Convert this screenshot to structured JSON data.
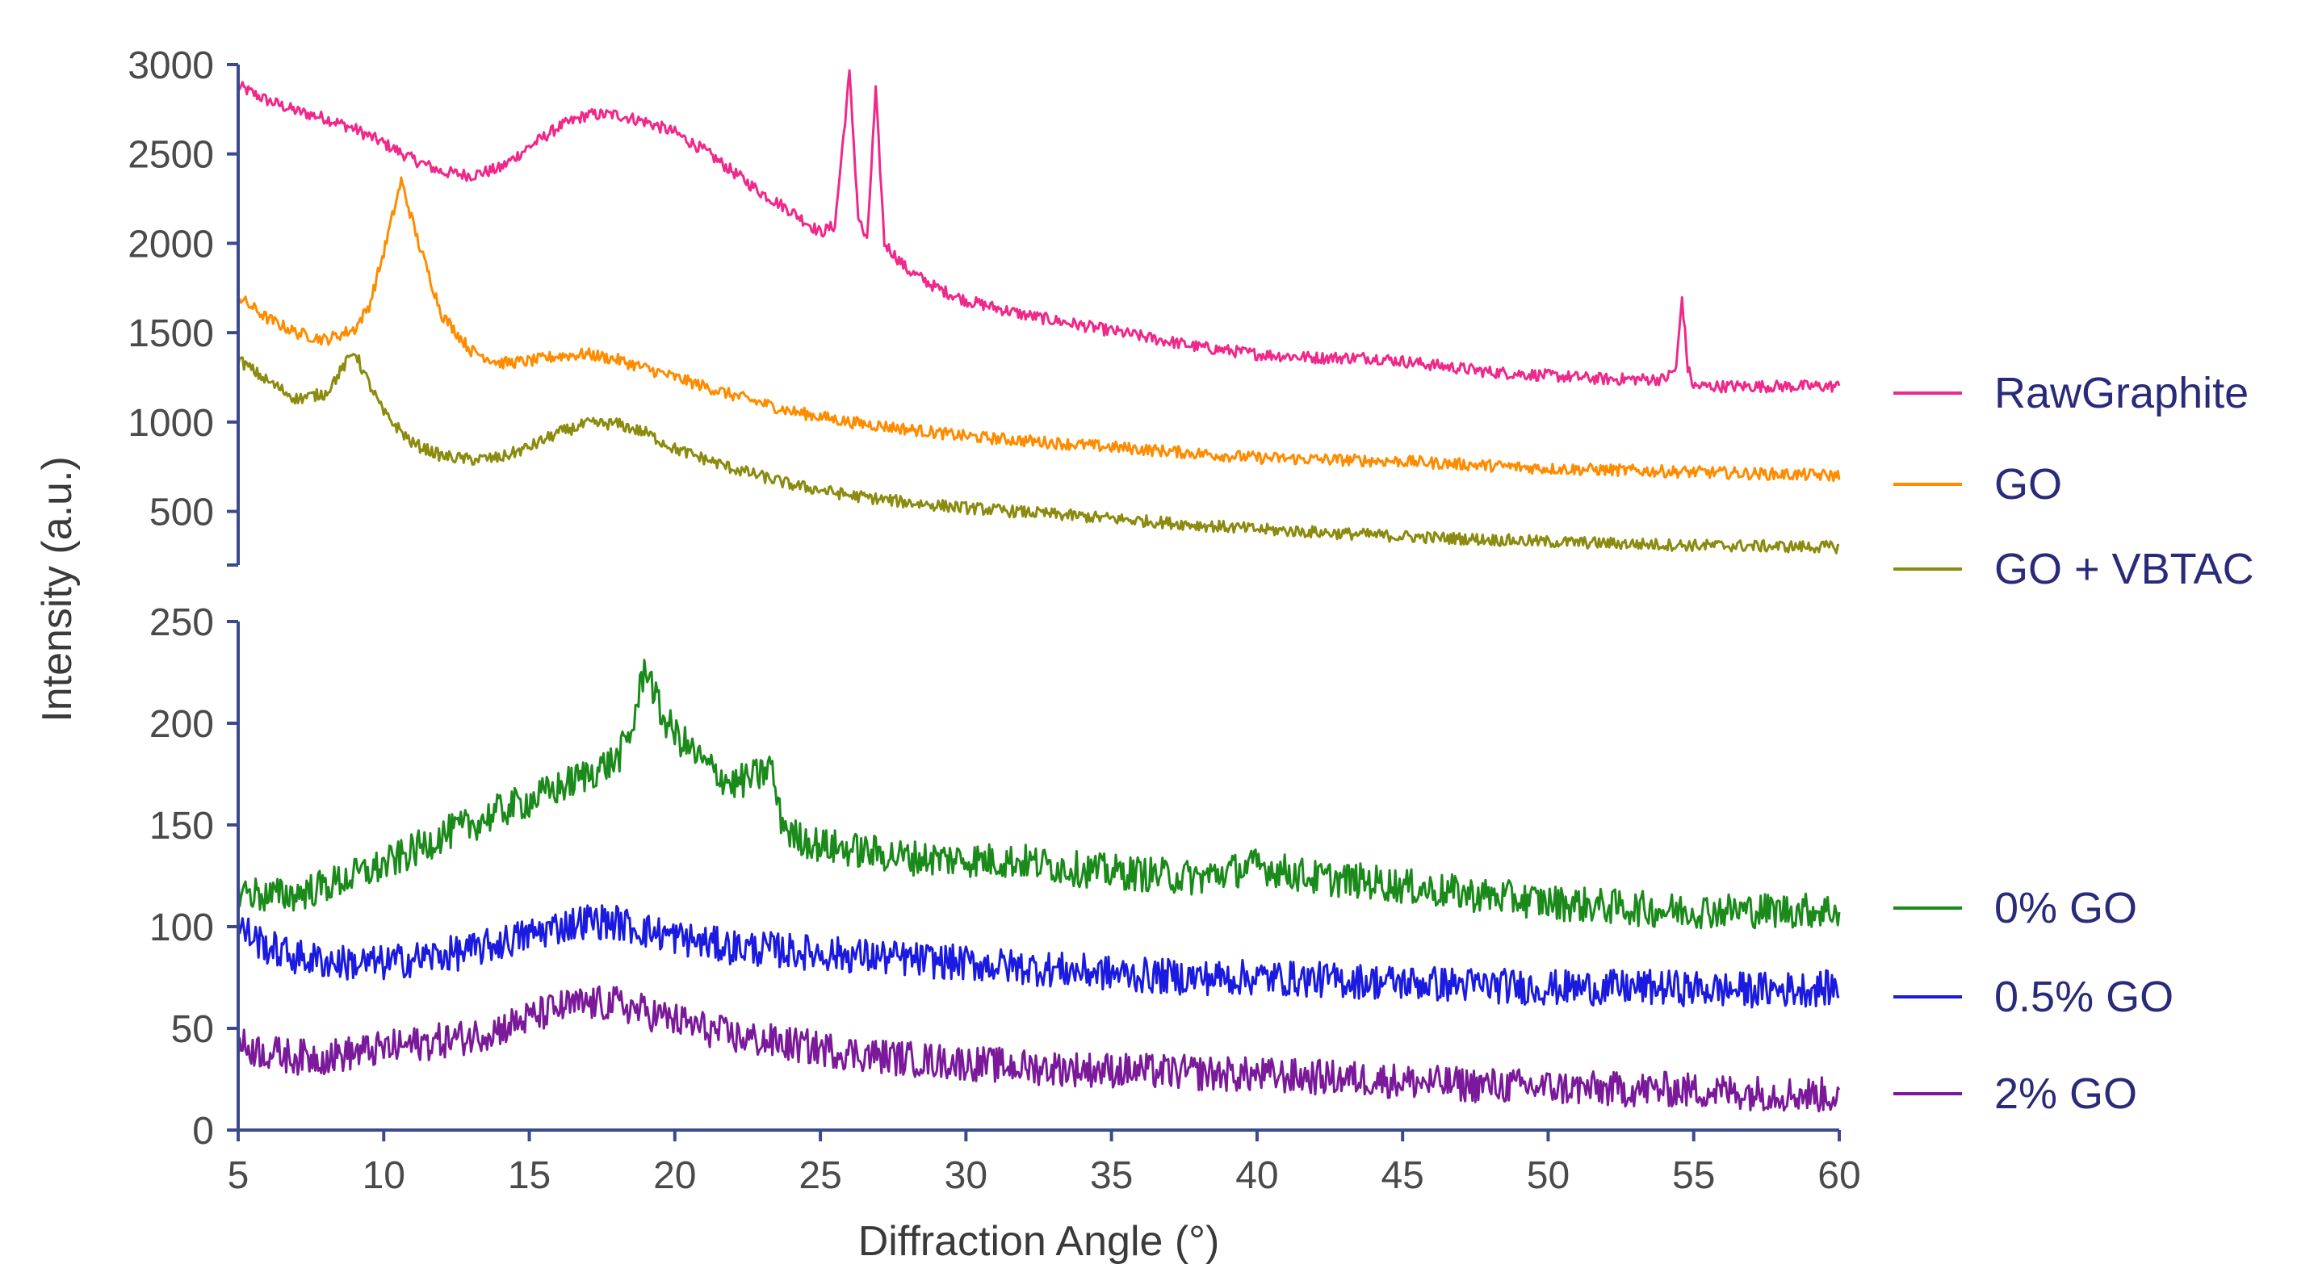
{
  "chart_data": [
    {
      "type": "line",
      "panel": "upper",
      "xlabel": "",
      "ylabel": "",
      "xlim": [
        5,
        60
      ],
      "ylim": [
        200,
        3000
      ],
      "yticks": [
        500,
        1000,
        1500,
        2000,
        2500,
        3000
      ],
      "series": [
        {
          "name": "RawGraphite",
          "color": "#f0288a",
          "points": [
            [
              5,
              2880
            ],
            [
              6,
              2800
            ],
            [
              7,
              2740
            ],
            [
              8,
              2700
            ],
            [
              9,
              2640
            ],
            [
              10,
              2560
            ],
            [
              11,
              2470
            ],
            [
              12,
              2400
            ],
            [
              13,
              2380
            ],
            [
              14,
              2420
            ],
            [
              15,
              2540
            ],
            [
              16,
              2650
            ],
            [
              17,
              2720
            ],
            [
              18,
              2720
            ],
            [
              19,
              2680
            ],
            [
              20,
              2620
            ],
            [
              21,
              2520
            ],
            [
              22,
              2400
            ],
            [
              23,
              2280
            ],
            [
              24,
              2180
            ],
            [
              25,
              2060
            ],
            [
              25.5,
              2100
            ],
            [
              26,
              2950
            ],
            [
              26.3,
              2150
            ],
            [
              26.6,
              2000
            ],
            [
              26.9,
              2850
            ],
            [
              27.2,
              2000
            ],
            [
              28,
              1850
            ],
            [
              29,
              1750
            ],
            [
              30,
              1680
            ],
            [
              32,
              1600
            ],
            [
              34,
              1540
            ],
            [
              36,
              1480
            ],
            [
              38,
              1420
            ],
            [
              40,
              1380
            ],
            [
              42,
              1360
            ],
            [
              44,
              1360
            ],
            [
              46,
              1320
            ],
            [
              48,
              1280
            ],
            [
              50,
              1260
            ],
            [
              52,
              1240
            ],
            [
              54,
              1240
            ],
            [
              54.4,
              1300
            ],
            [
              54.6,
              1700
            ],
            [
              54.8,
              1300
            ],
            [
              55,
              1200
            ],
            [
              56,
              1200
            ],
            [
              58,
              1200
            ],
            [
              60,
              1200
            ]
          ]
        },
        {
          "name": "GO",
          "color": "#ff8c00",
          "points": [
            [
              5,
              1700
            ],
            [
              6,
              1580
            ],
            [
              7,
              1500
            ],
            [
              8,
              1460
            ],
            [
              9,
              1520
            ],
            [
              9.5,
              1650
            ],
            [
              10,
              1950
            ],
            [
              10.6,
              2350
            ],
            [
              11.2,
              2000
            ],
            [
              12,
              1600
            ],
            [
              13,
              1400
            ],
            [
              14,
              1330
            ],
            [
              15,
              1340
            ],
            [
              16,
              1370
            ],
            [
              17,
              1380
            ],
            [
              18,
              1350
            ],
            [
              19,
              1300
            ],
            [
              20,
              1250
            ],
            [
              22,
              1150
            ],
            [
              24,
              1060
            ],
            [
              26,
              1000
            ],
            [
              28,
              960
            ],
            [
              30,
              920
            ],
            [
              35,
              860
            ],
            [
              40,
              800
            ],
            [
              45,
              780
            ],
            [
              50,
              740
            ],
            [
              55,
              720
            ],
            [
              60,
              700
            ]
          ]
        },
        {
          "name": "GO + VBTAC",
          "color": "#8b8b10",
          "points": [
            [
              5,
              1350
            ],
            [
              6,
              1230
            ],
            [
              7,
              1130
            ],
            [
              8,
              1160
            ],
            [
              9,
              1400
            ],
            [
              9.3,
              1280
            ],
            [
              10,
              1050
            ],
            [
              11,
              880
            ],
            [
              12,
              810
            ],
            [
              13,
              790
            ],
            [
              14,
              800
            ],
            [
              15,
              860
            ],
            [
              16,
              940
            ],
            [
              17,
              990
            ],
            [
              18,
              990
            ],
            [
              19,
              940
            ],
            [
              20,
              850
            ],
            [
              22,
              740
            ],
            [
              24,
              650
            ],
            [
              26,
              590
            ],
            [
              28,
              550
            ],
            [
              30,
              520
            ],
            [
              35,
              460
            ],
            [
              40,
              400
            ],
            [
              45,
              360
            ],
            [
              50,
              330
            ],
            [
              55,
              310
            ],
            [
              60,
              300
            ]
          ]
        }
      ]
    },
    {
      "type": "line",
      "panel": "lower",
      "xlabel": "Diffraction Angle (°)",
      "ylabel": "Intensity (a.u.)",
      "xlim": [
        5,
        60
      ],
      "ylim": [
        0,
        250
      ],
      "xticks": [
        5,
        10,
        15,
        20,
        25,
        30,
        35,
        40,
        45,
        50,
        55,
        60
      ],
      "yticks": [
        0,
        50,
        100,
        150,
        200,
        250
      ],
      "series": [
        {
          "name": "0% GO",
          "color": "#1a8a1a",
          "points": [
            [
              5,
              118
            ],
            [
              6,
              115
            ],
            [
              7,
              116
            ],
            [
              8,
              120
            ],
            [
              9,
              125
            ],
            [
              10,
              130
            ],
            [
              11,
              137
            ],
            [
              12,
              145
            ],
            [
              13,
              150
            ],
            [
              14,
              157
            ],
            [
              15,
              162
            ],
            [
              16,
              168
            ],
            [
              17,
              175
            ],
            [
              18,
              182
            ],
            [
              18.5,
              195
            ],
            [
              19,
              230
            ],
            [
              19.5,
              205
            ],
            [
              20,
              195
            ],
            [
              21,
              180
            ],
            [
              22,
              170
            ],
            [
              23,
              175
            ],
            [
              23.3,
              180
            ],
            [
              23.6,
              155
            ],
            [
              24,
              145
            ],
            [
              25,
              140
            ],
            [
              26,
              138
            ],
            [
              27,
              136
            ],
            [
              28,
              134
            ],
            [
              30,
              133
            ],
            [
              32,
              132
            ],
            [
              34,
              128
            ],
            [
              36,
              126
            ],
            [
              38,
              124
            ],
            [
              40,
              130
            ],
            [
              42,
              124
            ],
            [
              44,
              122
            ],
            [
              46,
              118
            ],
            [
              48,
              115
            ],
            [
              50,
              112
            ],
            [
              52,
              110
            ],
            [
              54,
              108
            ],
            [
              56,
              108
            ],
            [
              58,
              108
            ],
            [
              60,
              108
            ]
          ]
        },
        {
          "name": "0.5% GO",
          "color": "#1a1ae0",
          "points": [
            [
              5,
              100
            ],
            [
              6,
              90
            ],
            [
              7,
              85
            ],
            [
              8,
              83
            ],
            [
              9,
              82
            ],
            [
              10,
              82
            ],
            [
              11,
              84
            ],
            [
              12,
              86
            ],
            [
              13,
              88
            ],
            [
              14,
              92
            ],
            [
              15,
              96
            ],
            [
              16,
              100
            ],
            [
              17,
              103
            ],
            [
              18,
              102
            ],
            [
              19,
              98
            ],
            [
              20,
              95
            ],
            [
              21,
              92
            ],
            [
              22,
              90
            ],
            [
              24,
              88
            ],
            [
              26,
              86
            ],
            [
              28,
              84
            ],
            [
              30,
              82
            ],
            [
              32,
              80
            ],
            [
              34,
              78
            ],
            [
              36,
              76
            ],
            [
              38,
              75
            ],
            [
              40,
              75
            ],
            [
              42,
              74
            ],
            [
              44,
              73
            ],
            [
              46,
              72
            ],
            [
              48,
              71
            ],
            [
              50,
              70
            ],
            [
              52,
              70
            ],
            [
              54,
              70
            ],
            [
              56,
              69
            ],
            [
              58,
              69
            ],
            [
              60,
              70
            ]
          ]
        },
        {
          "name": "2% GO",
          "color": "#7a1a9a",
          "points": [
            [
              5,
              42
            ],
            [
              6,
              38
            ],
            [
              7,
              36
            ],
            [
              8,
              36
            ],
            [
              9,
              38
            ],
            [
              10,
              40
            ],
            [
              11,
              42
            ],
            [
              12,
              44
            ],
            [
              13,
              46
            ],
            [
              14,
              50
            ],
            [
              15,
              55
            ],
            [
              16,
              60
            ],
            [
              17,
              62
            ],
            [
              18,
              62
            ],
            [
              19,
              58
            ],
            [
              20,
              54
            ],
            [
              21,
              50
            ],
            [
              22,
              46
            ],
            [
              24,
              42
            ],
            [
              26,
              38
            ],
            [
              28,
              35
            ],
            [
              30,
              33
            ],
            [
              32,
              31
            ],
            [
              34,
              30
            ],
            [
              36,
              29
            ],
            [
              38,
              28
            ],
            [
              40,
              27
            ],
            [
              42,
              26
            ],
            [
              44,
              25
            ],
            [
              46,
              23
            ],
            [
              48,
              22
            ],
            [
              50,
              21
            ],
            [
              52,
              20
            ],
            [
              54,
              20
            ],
            [
              56,
              19
            ],
            [
              58,
              18
            ],
            [
              60,
              17
            ]
          ]
        }
      ]
    }
  ]
}
